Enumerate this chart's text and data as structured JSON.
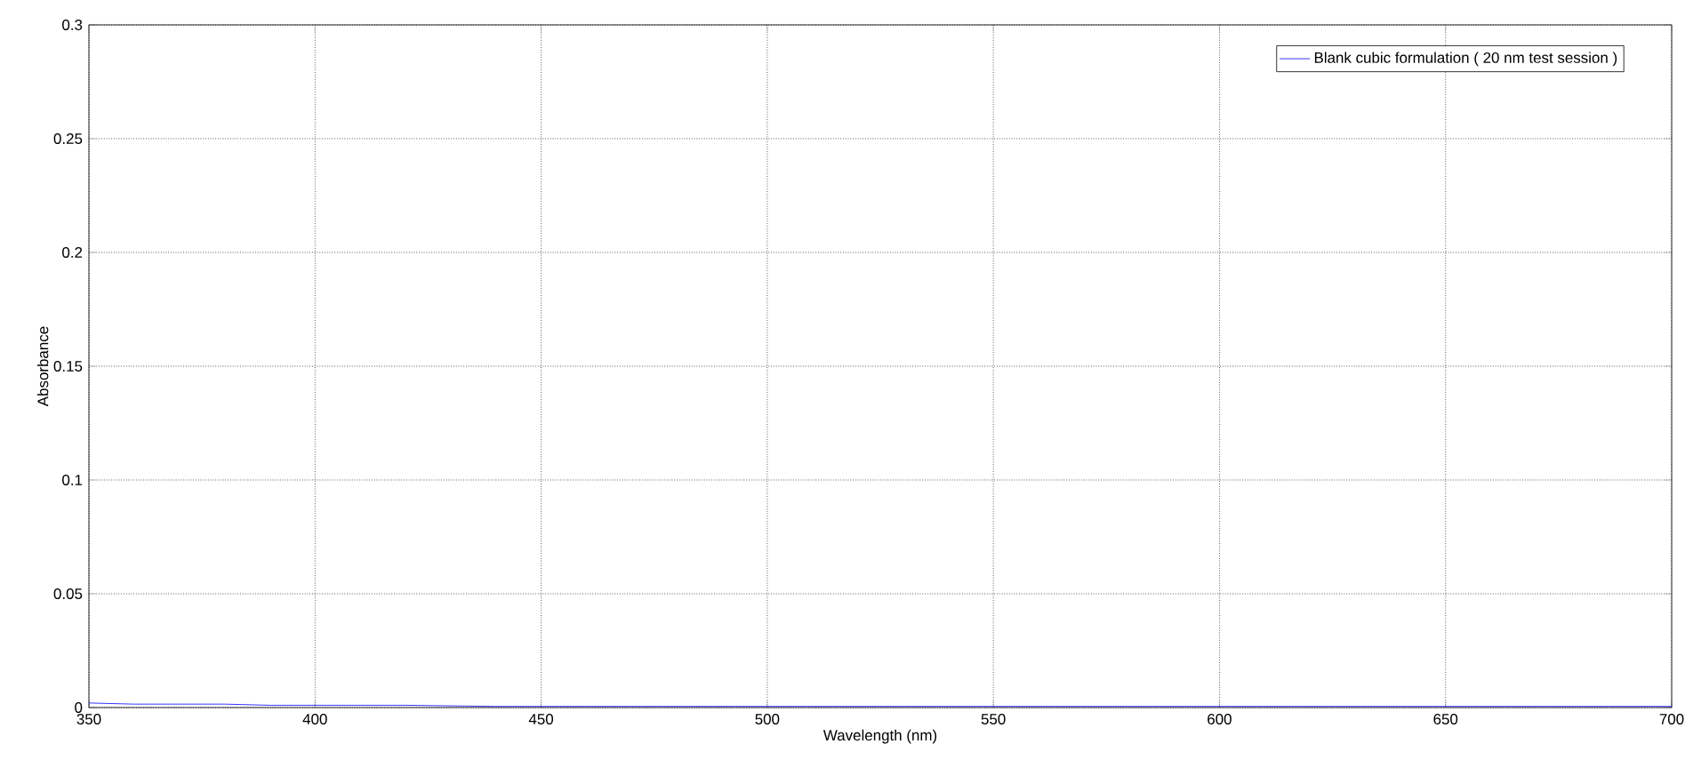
{
  "chart_data": {
    "type": "line",
    "xlabel": "Wavelength (nm)",
    "ylabel": "Absorbance",
    "x": [
      350,
      360,
      370,
      380,
      390,
      400,
      420,
      440,
      460,
      480,
      500,
      520,
      540,
      560,
      580,
      600,
      620,
      640,
      660,
      680,
      700
    ],
    "series": [
      {
        "name": "Blank cubic formulation ( 20 nm test session )",
        "color": "#0000ff",
        "values": [
          0.002,
          0.0015,
          0.0015,
          0.0015,
          0.001,
          0.001,
          0.001,
          0.0005,
          0.0005,
          0.0005,
          0.0005,
          0.0005,
          0.0005,
          0.0005,
          0.0005,
          0.0005,
          0.0005,
          0.0005,
          0.0005,
          0.0005,
          0.0005
        ]
      }
    ],
    "xlim": [
      350,
      700
    ],
    "ylim": [
      0,
      0.3
    ],
    "xticks": [
      350,
      400,
      450,
      500,
      550,
      600,
      650,
      700
    ],
    "yticks": [
      0,
      0.05,
      0.1,
      0.15,
      0.2,
      0.25,
      0.3
    ],
    "grid": true,
    "legend": "top right",
    "line_style": "solid",
    "marker": "none"
  }
}
